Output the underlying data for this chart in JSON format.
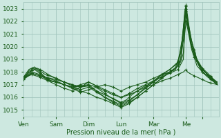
{
  "xlabel": "Pression niveau de la mer( hPa )",
  "xlim": [
    0,
    144
  ],
  "ylim": [
    1014.5,
    1023.5
  ],
  "yticks": [
    1015,
    1016,
    1017,
    1018,
    1019,
    1020,
    1021,
    1022,
    1023
  ],
  "xtick_positions": [
    0,
    24,
    48,
    72,
    96,
    120,
    132
  ],
  "xtick_labels": [
    "Ven",
    "Sam",
    "Dim",
    "Lun",
    "Mar",
    "Me",
    ""
  ],
  "bg_color": "#cde8e0",
  "grid_color": "#a0c4bc",
  "line_color": "#1a5c1a",
  "linewidth": 0.8,
  "lines_pts": [
    [
      [
        0,
        1017.5
      ],
      [
        4,
        1018.1
      ],
      [
        8,
        1018.3
      ],
      [
        12,
        1018.0
      ],
      [
        16,
        1017.6
      ],
      [
        20,
        1017.3
      ],
      [
        24,
        1017.2
      ],
      [
        30,
        1017.0
      ],
      [
        36,
        1016.8
      ],
      [
        42,
        1017.0
      ],
      [
        48,
        1017.2
      ],
      [
        52,
        1017.0
      ],
      [
        56,
        1016.6
      ],
      [
        60,
        1016.3
      ],
      [
        64,
        1016.0
      ],
      [
        68,
        1015.8
      ],
      [
        72,
        1015.6
      ],
      [
        76,
        1015.8
      ],
      [
        80,
        1016.2
      ],
      [
        84,
        1016.5
      ],
      [
        88,
        1016.8
      ],
      [
        92,
        1017.0
      ],
      [
        96,
        1017.2
      ],
      [
        100,
        1017.5
      ],
      [
        104,
        1017.8
      ],
      [
        108,
        1018.0
      ],
      [
        112,
        1018.3
      ],
      [
        116,
        1019.5
      ],
      [
        118,
        1021.5
      ],
      [
        119,
        1022.8
      ],
      [
        120,
        1023.3
      ],
      [
        121,
        1022.5
      ],
      [
        123,
        1021.0
      ],
      [
        126,
        1019.5
      ],
      [
        130,
        1018.5
      ],
      [
        134,
        1018.0
      ],
      [
        138,
        1017.5
      ],
      [
        143,
        1017.0
      ]
    ],
    [
      [
        0,
        1017.4
      ],
      [
        4,
        1018.0
      ],
      [
        8,
        1018.2
      ],
      [
        12,
        1017.9
      ],
      [
        16,
        1017.5
      ],
      [
        20,
        1017.2
      ],
      [
        24,
        1017.0
      ],
      [
        28,
        1016.8
      ],
      [
        36,
        1016.5
      ],
      [
        42,
        1016.8
      ],
      [
        48,
        1017.0
      ],
      [
        54,
        1016.5
      ],
      [
        60,
        1016.0
      ],
      [
        66,
        1015.6
      ],
      [
        72,
        1015.3
      ],
      [
        78,
        1015.6
      ],
      [
        84,
        1016.0
      ],
      [
        90,
        1016.5
      ],
      [
        96,
        1017.0
      ],
      [
        102,
        1017.5
      ],
      [
        108,
        1018.0
      ],
      [
        112,
        1018.2
      ],
      [
        116,
        1019.0
      ],
      [
        118,
        1021.0
      ],
      [
        119,
        1022.2
      ],
      [
        120,
        1023.0
      ],
      [
        121,
        1022.2
      ],
      [
        124,
        1020.5
      ],
      [
        128,
        1019.0
      ],
      [
        132,
        1018.2
      ],
      [
        136,
        1017.8
      ],
      [
        143,
        1017.1
      ]
    ],
    [
      [
        0,
        1017.6
      ],
      [
        4,
        1018.2
      ],
      [
        8,
        1018.4
      ],
      [
        12,
        1018.1
      ],
      [
        16,
        1017.8
      ],
      [
        24,
        1017.5
      ],
      [
        30,
        1017.2
      ],
      [
        36,
        1017.0
      ],
      [
        42,
        1016.8
      ],
      [
        48,
        1016.9
      ],
      [
        54,
        1016.5
      ],
      [
        60,
        1016.2
      ],
      [
        66,
        1015.9
      ],
      [
        72,
        1015.5
      ],
      [
        78,
        1015.8
      ],
      [
        84,
        1016.2
      ],
      [
        90,
        1016.7
      ],
      [
        96,
        1017.2
      ],
      [
        102,
        1017.8
      ],
      [
        108,
        1018.2
      ],
      [
        114,
        1018.8
      ],
      [
        117,
        1020.5
      ],
      [
        119,
        1022.5
      ],
      [
        120,
        1023.2
      ],
      [
        121,
        1022.0
      ],
      [
        124,
        1020.0
      ],
      [
        128,
        1018.8
      ],
      [
        132,
        1018.0
      ],
      [
        136,
        1017.6
      ],
      [
        143,
        1017.2
      ]
    ],
    [
      [
        0,
        1017.5
      ],
      [
        6,
        1018.0
      ],
      [
        12,
        1017.8
      ],
      [
        18,
        1017.5
      ],
      [
        24,
        1017.3
      ],
      [
        30,
        1017.0
      ],
      [
        36,
        1016.8
      ],
      [
        42,
        1016.5
      ],
      [
        48,
        1016.3
      ],
      [
        54,
        1016.0
      ],
      [
        60,
        1015.8
      ],
      [
        66,
        1015.5
      ],
      [
        72,
        1015.2
      ],
      [
        78,
        1015.5
      ],
      [
        84,
        1016.0
      ],
      [
        90,
        1016.5
      ],
      [
        96,
        1017.0
      ],
      [
        102,
        1017.5
      ],
      [
        108,
        1018.0
      ],
      [
        114,
        1018.5
      ],
      [
        116,
        1019.0
      ],
      [
        118,
        1020.5
      ],
      [
        119,
        1022.0
      ],
      [
        120,
        1022.8
      ],
      [
        121,
        1021.8
      ],
      [
        124,
        1020.0
      ],
      [
        128,
        1018.8
      ],
      [
        132,
        1018.2
      ],
      [
        136,
        1017.8
      ],
      [
        143,
        1017.2
      ]
    ],
    [
      [
        0,
        1017.4
      ],
      [
        6,
        1017.9
      ],
      [
        12,
        1017.7
      ],
      [
        18,
        1017.4
      ],
      [
        24,
        1017.2
      ],
      [
        30,
        1017.0
      ],
      [
        36,
        1016.7
      ],
      [
        42,
        1016.4
      ],
      [
        48,
        1016.6
      ],
      [
        54,
        1016.8
      ],
      [
        60,
        1017.0
      ],
      [
        66,
        1016.8
      ],
      [
        72,
        1016.5
      ],
      [
        78,
        1016.8
      ],
      [
        84,
        1017.0
      ],
      [
        90,
        1017.2
      ],
      [
        96,
        1017.5
      ],
      [
        102,
        1017.8
      ],
      [
        108,
        1018.0
      ],
      [
        112,
        1018.2
      ],
      [
        116,
        1018.8
      ],
      [
        118,
        1019.5
      ],
      [
        119,
        1021.0
      ],
      [
        120,
        1022.0
      ],
      [
        121,
        1021.5
      ],
      [
        124,
        1019.8
      ],
      [
        128,
        1018.5
      ],
      [
        132,
        1018.0
      ],
      [
        136,
        1017.7
      ],
      [
        143,
        1017.0
      ]
    ],
    [
      [
        0,
        1017.5
      ],
      [
        6,
        1017.8
      ],
      [
        12,
        1017.6
      ],
      [
        18,
        1017.3
      ],
      [
        24,
        1017.2
      ],
      [
        30,
        1017.0
      ],
      [
        36,
        1016.8
      ],
      [
        48,
        1017.0
      ],
      [
        54,
        1016.8
      ],
      [
        60,
        1016.5
      ],
      [
        66,
        1016.2
      ],
      [
        72,
        1016.0
      ],
      [
        78,
        1016.2
      ],
      [
        84,
        1016.5
      ],
      [
        90,
        1016.8
      ],
      [
        96,
        1017.0
      ],
      [
        102,
        1017.3
      ],
      [
        108,
        1017.5
      ],
      [
        114,
        1017.8
      ],
      [
        118,
        1018.0
      ],
      [
        120,
        1018.2
      ],
      [
        121,
        1018.0
      ],
      [
        124,
        1017.8
      ],
      [
        128,
        1017.6
      ],
      [
        132,
        1017.4
      ],
      [
        136,
        1017.2
      ],
      [
        143,
        1017.0
      ]
    ],
    [
      [
        0,
        1017.6
      ],
      [
        6,
        1018.1
      ],
      [
        10,
        1018.3
      ],
      [
        14,
        1018.1
      ],
      [
        18,
        1017.8
      ],
      [
        24,
        1017.5
      ],
      [
        30,
        1017.2
      ],
      [
        36,
        1016.9
      ],
      [
        42,
        1016.6
      ],
      [
        48,
        1016.8
      ],
      [
        54,
        1016.4
      ],
      [
        60,
        1016.0
      ],
      [
        66,
        1015.7
      ],
      [
        72,
        1015.4
      ],
      [
        78,
        1015.7
      ],
      [
        84,
        1016.2
      ],
      [
        90,
        1016.8
      ],
      [
        96,
        1017.3
      ],
      [
        102,
        1017.8
      ],
      [
        108,
        1018.2
      ],
      [
        114,
        1018.7
      ],
      [
        116,
        1019.5
      ],
      [
        118,
        1021.2
      ],
      [
        119,
        1022.5
      ],
      [
        120,
        1023.0
      ],
      [
        121,
        1022.0
      ],
      [
        124,
        1020.2
      ],
      [
        128,
        1019.0
      ],
      [
        132,
        1018.3
      ],
      [
        136,
        1017.9
      ],
      [
        143,
        1017.1
      ]
    ],
    [
      [
        0,
        1017.5
      ],
      [
        6,
        1017.9
      ],
      [
        12,
        1017.7
      ],
      [
        24,
        1017.4
      ],
      [
        36,
        1017.0
      ],
      [
        42,
        1016.8
      ],
      [
        48,
        1017.2
      ],
      [
        54,
        1016.9
      ],
      [
        60,
        1016.6
      ],
      [
        66,
        1016.3
      ],
      [
        72,
        1016.0
      ],
      [
        78,
        1016.3
      ],
      [
        84,
        1016.7
      ],
      [
        90,
        1017.0
      ],
      [
        96,
        1017.3
      ],
      [
        102,
        1017.6
      ],
      [
        108,
        1017.9
      ],
      [
        114,
        1018.2
      ],
      [
        118,
        1019.0
      ],
      [
        119,
        1021.5
      ],
      [
        120,
        1022.5
      ],
      [
        121,
        1021.8
      ],
      [
        124,
        1020.0
      ],
      [
        128,
        1018.8
      ],
      [
        132,
        1018.0
      ],
      [
        136,
        1017.6
      ],
      [
        143,
        1017.0
      ]
    ]
  ]
}
